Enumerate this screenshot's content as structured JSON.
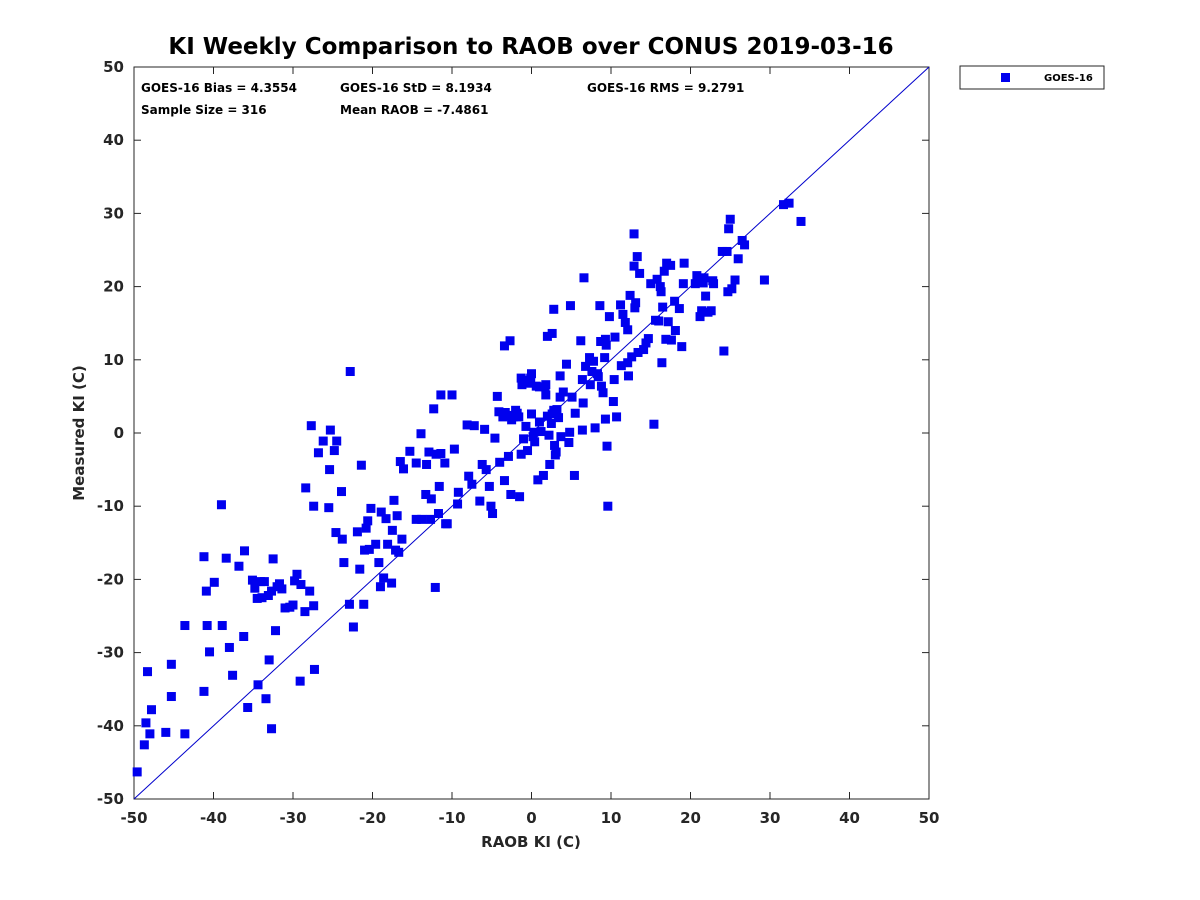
{
  "chart_data": {
    "type": "scatter",
    "title": "KI Weekly Comparison to RAOB over CONUS 2019-03-16",
    "xlabel": "RAOB KI (C)",
    "ylabel": "Measured KI (C)",
    "xlim": [
      -50,
      50
    ],
    "ylim": [
      -50,
      50
    ],
    "xticks": [
      -50,
      -40,
      -30,
      -20,
      -10,
      0,
      10,
      20,
      30,
      40,
      50
    ],
    "yticks": [
      -50,
      -40,
      -30,
      -20,
      -10,
      0,
      10,
      20,
      30,
      40,
      50
    ],
    "grid": false,
    "legend_position": "outside-top-right",
    "marker_color": "#0000ee",
    "line_color": "#0000cc",
    "reference_line": {
      "name": "1:1",
      "from": [
        -50,
        -50
      ],
      "to": [
        50,
        50
      ]
    },
    "stats": {
      "bias": "GOES-16 Bias = 4.3554",
      "std": "GOES-16 StD = 8.1934",
      "rms": "GOES-16 RMS = 9.2791",
      "sample": "Sample Size = 316",
      "mean": "Mean RAOB = -7.4861"
    },
    "series": [
      {
        "name": "GOES-16",
        "points": [
          [
            -49.6,
            -46.3
          ],
          [
            -48.7,
            -42.6
          ],
          [
            -48.5,
            -39.6
          ],
          [
            -48.3,
            -32.6
          ],
          [
            -48.0,
            -41.1
          ],
          [
            -47.8,
            -37.8
          ],
          [
            -46.0,
            -40.9
          ],
          [
            -45.3,
            -31.6
          ],
          [
            -45.3,
            -36.0
          ],
          [
            -43.6,
            -41.1
          ],
          [
            -43.6,
            -26.3
          ],
          [
            -41.2,
            -35.3
          ],
          [
            -41.2,
            -16.9
          ],
          [
            -40.9,
            -21.6
          ],
          [
            -40.8,
            -26.3
          ],
          [
            -40.5,
            -29.9
          ],
          [
            -39.9,
            -20.4
          ],
          [
            -39.0,
            -9.8
          ],
          [
            -38.9,
            -26.3
          ],
          [
            -38.4,
            -17.1
          ],
          [
            -38.0,
            -29.3
          ],
          [
            -37.6,
            -33.1
          ],
          [
            -36.8,
            -18.2
          ],
          [
            -36.2,
            -27.8
          ],
          [
            -36.1,
            -16.1
          ],
          [
            -35.7,
            -37.5
          ],
          [
            -35.1,
            -20.1
          ],
          [
            -34.8,
            -21.2
          ],
          [
            -34.5,
            -22.6
          ],
          [
            -34.4,
            -34.4
          ],
          [
            -34.1,
            -20.3
          ],
          [
            -33.9,
            -22.5
          ],
          [
            -33.6,
            -20.3
          ],
          [
            -33.4,
            -36.3
          ],
          [
            -33.1,
            -22.2
          ],
          [
            -33.0,
            -31.0
          ],
          [
            -32.7,
            -40.4
          ],
          [
            -32.7,
            -21.6
          ],
          [
            -32.5,
            -17.2
          ],
          [
            -32.2,
            -27.0
          ],
          [
            -32.0,
            -21.0
          ],
          [
            -31.7,
            -20.6
          ],
          [
            -31.4,
            -21.3
          ],
          [
            -31.0,
            -23.9
          ],
          [
            -30.4,
            -23.8
          ],
          [
            -30.0,
            -23.5
          ],
          [
            -29.8,
            -20.2
          ],
          [
            -29.5,
            -19.3
          ],
          [
            -29.1,
            -33.9
          ],
          [
            -29.0,
            -20.7
          ],
          [
            -28.5,
            -24.4
          ],
          [
            -28.4,
            -7.5
          ],
          [
            -27.9,
            -21.6
          ],
          [
            -27.7,
            1.0
          ],
          [
            -27.4,
            -10.0
          ],
          [
            -27.4,
            -23.6
          ],
          [
            -27.3,
            -32.3
          ],
          [
            -26.8,
            -2.7
          ],
          [
            -26.2,
            -1.1
          ],
          [
            -25.5,
            -10.2
          ],
          [
            -25.4,
            -5.0
          ],
          [
            -25.3,
            0.4
          ],
          [
            -24.8,
            -2.4
          ],
          [
            -24.6,
            -13.6
          ],
          [
            -24.5,
            -1.1
          ],
          [
            -23.9,
            -8.0
          ],
          [
            -23.8,
            -14.5
          ],
          [
            -23.6,
            -17.7
          ],
          [
            -22.9,
            -23.4
          ],
          [
            -22.8,
            8.4
          ],
          [
            -22.4,
            -26.5
          ],
          [
            -21.9,
            -13.5
          ],
          [
            -21.6,
            -18.6
          ],
          [
            -21.4,
            -4.4
          ],
          [
            -21.1,
            -23.4
          ],
          [
            -21.0,
            -16.0
          ],
          [
            -20.8,
            -13.0
          ],
          [
            -20.6,
            -12.0
          ],
          [
            -20.4,
            -15.9
          ],
          [
            -20.2,
            -10.3
          ],
          [
            -19.6,
            -15.2
          ],
          [
            -19.2,
            -17.7
          ],
          [
            -19.0,
            -21.0
          ],
          [
            -18.9,
            -10.8
          ],
          [
            -18.6,
            -19.8
          ],
          [
            -18.3,
            -11.7
          ],
          [
            -18.1,
            -15.2
          ],
          [
            -17.6,
            -20.5
          ],
          [
            -17.5,
            -13.3
          ],
          [
            -17.3,
            -9.2
          ],
          [
            -17.1,
            -16.0
          ],
          [
            -16.9,
            -11.3
          ],
          [
            -16.7,
            -16.3
          ],
          [
            -16.5,
            -3.9
          ],
          [
            -16.3,
            -14.5
          ],
          [
            -16.1,
            -4.9
          ],
          [
            -15.3,
            -2.5
          ],
          [
            -14.5,
            -11.8
          ],
          [
            -14.5,
            -4.1
          ],
          [
            -13.9,
            -0.1
          ],
          [
            -13.8,
            -11.8
          ],
          [
            -13.3,
            -8.4
          ],
          [
            -13.2,
            -4.3
          ],
          [
            -12.9,
            -2.6
          ],
          [
            -12.7,
            -11.8
          ],
          [
            -12.6,
            -9.0
          ],
          [
            -12.3,
            3.3
          ],
          [
            -12.1,
            -21.1
          ],
          [
            -12.0,
            -2.9
          ],
          [
            -11.7,
            -11.0
          ],
          [
            -11.6,
            -7.3
          ],
          [
            -11.4,
            5.2
          ],
          [
            -11.4,
            -2.8
          ],
          [
            -10.9,
            -4.1
          ],
          [
            -10.8,
            -12.4
          ],
          [
            -10.6,
            -12.4
          ],
          [
            -10.0,
            5.2
          ],
          [
            -9.7,
            -2.2
          ],
          [
            -9.3,
            -9.7
          ],
          [
            -9.2,
            -8.1
          ],
          [
            -8.1,
            1.1
          ],
          [
            -7.9,
            -5.9
          ],
          [
            -7.5,
            -7.0
          ],
          [
            -7.2,
            1.0
          ],
          [
            -6.5,
            -9.3
          ],
          [
            -6.2,
            -4.3
          ],
          [
            -5.9,
            0.5
          ],
          [
            -5.7,
            -5.0
          ],
          [
            -5.3,
            -7.3
          ],
          [
            -5.1,
            -10.0
          ],
          [
            -4.9,
            -11.0
          ],
          [
            -4.6,
            -0.7
          ],
          [
            -4.3,
            5.0
          ],
          [
            -4.1,
            2.9
          ],
          [
            -4.0,
            -4.0
          ],
          [
            -3.6,
            2.2
          ],
          [
            -3.4,
            11.9
          ],
          [
            -3.4,
            -6.5
          ],
          [
            -3.3,
            2.8
          ],
          [
            -3.0,
            2.4
          ],
          [
            -2.9,
            -3.2
          ],
          [
            -2.7,
            12.6
          ],
          [
            -2.6,
            -8.4
          ],
          [
            -2.5,
            1.8
          ],
          [
            -2.3,
            2.2
          ],
          [
            -2.0,
            3.1
          ],
          [
            -1.8,
            2.7
          ],
          [
            -1.6,
            2.2
          ],
          [
            -1.5,
            -8.7
          ],
          [
            -1.3,
            -2.9
          ],
          [
            -1.3,
            7.5
          ],
          [
            -1.2,
            6.6
          ],
          [
            -1.0,
            -0.8
          ],
          [
            -0.9,
            7.2
          ],
          [
            -0.7,
            0.9
          ],
          [
            -0.5,
            -2.4
          ],
          [
            -0.3,
            6.8
          ],
          [
            -0.1,
            7.5
          ],
          [
            0.0,
            2.6
          ],
          [
            0.0,
            8.1
          ],
          [
            0.2,
            -0.5
          ],
          [
            0.3,
            0.1
          ],
          [
            0.4,
            -1.2
          ],
          [
            0.6,
            6.4
          ],
          [
            0.8,
            -6.4
          ],
          [
            1.0,
            1.5
          ],
          [
            1.0,
            6.3
          ],
          [
            1.2,
            0.2
          ],
          [
            1.5,
            -5.8
          ],
          [
            1.7,
            6.3
          ],
          [
            1.8,
            5.2
          ],
          [
            1.8,
            6.6
          ],
          [
            2.0,
            13.2
          ],
          [
            2.0,
            2.3
          ],
          [
            2.2,
            -0.3
          ],
          [
            2.3,
            -4.3
          ],
          [
            2.5,
            1.3
          ],
          [
            2.6,
            13.6
          ],
          [
            2.6,
            2.6
          ],
          [
            2.8,
            3.1
          ],
          [
            2.8,
            16.9
          ],
          [
            2.9,
            -1.7
          ],
          [
            3.0,
            -3.0
          ],
          [
            3.1,
            -2.6
          ],
          [
            3.2,
            3.2
          ],
          [
            3.4,
            2.1
          ],
          [
            3.6,
            4.9
          ],
          [
            3.6,
            7.8
          ],
          [
            3.7,
            -0.5
          ],
          [
            4.0,
            5.6
          ],
          [
            4.4,
            9.4
          ],
          [
            4.7,
            -1.3
          ],
          [
            4.8,
            0.1
          ],
          [
            4.9,
            17.4
          ],
          [
            5.1,
            4.9
          ],
          [
            5.4,
            -5.8
          ],
          [
            5.5,
            2.7
          ],
          [
            6.2,
            12.6
          ],
          [
            6.4,
            0.4
          ],
          [
            6.4,
            7.3
          ],
          [
            6.5,
            4.1
          ],
          [
            6.6,
            21.2
          ],
          [
            6.8,
            9.1
          ],
          [
            7.3,
            10.3
          ],
          [
            7.4,
            6.6
          ],
          [
            7.6,
            8.4
          ],
          [
            7.8,
            9.8
          ],
          [
            8.0,
            0.7
          ],
          [
            8.3,
            8.1
          ],
          [
            8.4,
            7.7
          ],
          [
            8.6,
            17.4
          ],
          [
            8.7,
            12.5
          ],
          [
            8.8,
            6.4
          ],
          [
            9.0,
            5.5
          ],
          [
            9.2,
            10.3
          ],
          [
            9.3,
            12.8
          ],
          [
            9.3,
            1.9
          ],
          [
            9.4,
            12.0
          ],
          [
            9.5,
            -1.8
          ],
          [
            9.6,
            -10.0
          ],
          [
            9.8,
            15.9
          ],
          [
            10.3,
            4.3
          ],
          [
            10.4,
            7.3
          ],
          [
            10.5,
            13.1
          ],
          [
            10.7,
            2.2
          ],
          [
            11.2,
            17.5
          ],
          [
            11.3,
            9.2
          ],
          [
            11.5,
            16.2
          ],
          [
            11.8,
            15.1
          ],
          [
            12.1,
            14.1
          ],
          [
            12.1,
            9.6
          ],
          [
            12.2,
            7.8
          ],
          [
            12.4,
            18.8
          ],
          [
            12.6,
            10.4
          ],
          [
            12.9,
            27.2
          ],
          [
            12.9,
            22.8
          ],
          [
            13.0,
            17.1
          ],
          [
            13.1,
            17.8
          ],
          [
            13.3,
            24.1
          ],
          [
            13.4,
            11.0
          ],
          [
            13.6,
            21.8
          ],
          [
            14.1,
            11.4
          ],
          [
            14.4,
            12.3
          ],
          [
            14.7,
            12.9
          ],
          [
            15.0,
            20.4
          ],
          [
            15.4,
            1.2
          ],
          [
            15.6,
            15.4
          ],
          [
            15.8,
            21.0
          ],
          [
            16.0,
            15.3
          ],
          [
            16.2,
            20.0
          ],
          [
            16.3,
            19.3
          ],
          [
            16.4,
            9.6
          ],
          [
            16.5,
            17.2
          ],
          [
            16.7,
            22.1
          ],
          [
            16.9,
            12.8
          ],
          [
            17.0,
            23.2
          ],
          [
            17.2,
            15.2
          ],
          [
            17.5,
            22.9
          ],
          [
            17.6,
            12.7
          ],
          [
            18.0,
            18.0
          ],
          [
            18.1,
            14.0
          ],
          [
            18.6,
            17.0
          ],
          [
            18.9,
            11.8
          ],
          [
            19.1,
            20.4
          ],
          [
            19.2,
            23.2
          ],
          [
            20.6,
            20.4
          ],
          [
            20.8,
            21.5
          ],
          [
            21.2,
            15.9
          ],
          [
            21.4,
            16.7
          ],
          [
            21.6,
            20.5
          ],
          [
            21.7,
            21.2
          ],
          [
            21.9,
            18.7
          ],
          [
            22.2,
            16.5
          ],
          [
            22.6,
            16.7
          ],
          [
            22.8,
            20.8
          ],
          [
            22.9,
            20.4
          ],
          [
            24.0,
            24.8
          ],
          [
            24.2,
            11.2
          ],
          [
            24.6,
            24.8
          ],
          [
            24.7,
            19.3
          ],
          [
            24.8,
            27.9
          ],
          [
            25.0,
            29.2
          ],
          [
            25.2,
            19.7
          ],
          [
            25.6,
            20.9
          ],
          [
            26.0,
            23.8
          ],
          [
            26.5,
            26.3
          ],
          [
            26.8,
            25.7
          ],
          [
            29.3,
            20.9
          ],
          [
            31.7,
            31.2
          ],
          [
            32.4,
            31.4
          ],
          [
            33.9,
            28.9
          ]
        ]
      }
    ]
  }
}
